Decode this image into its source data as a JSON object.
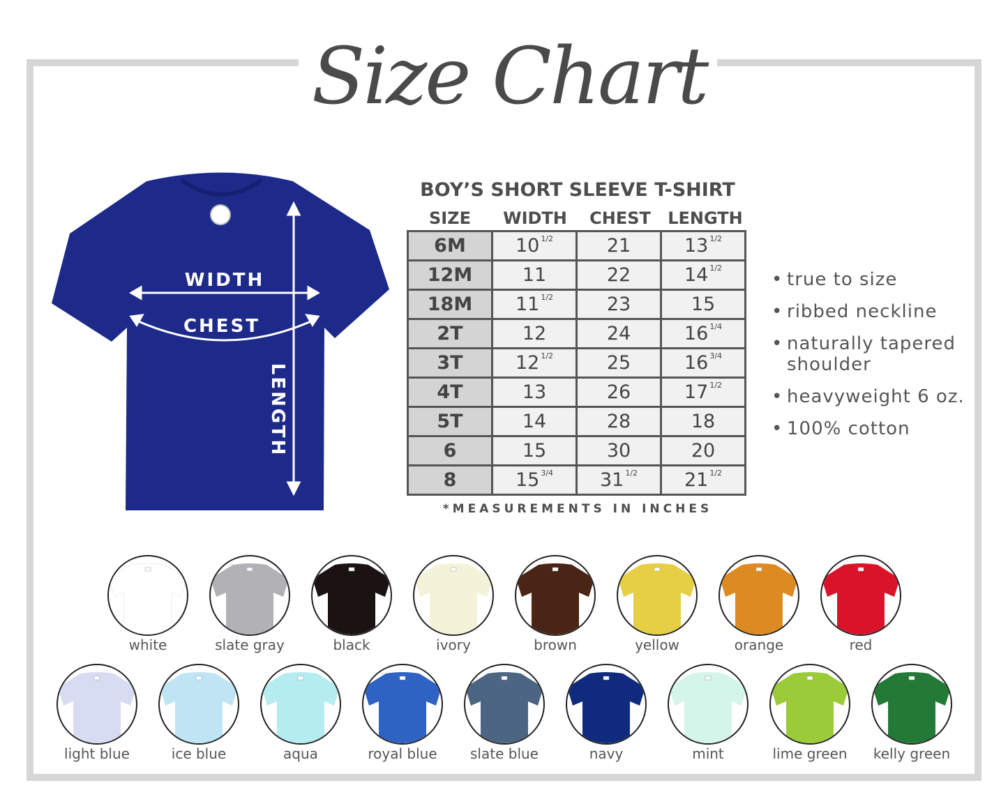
{
  "title": "Size Chart",
  "shirt": {
    "color": "#1d2a8a",
    "labels": {
      "width": "WIDTH",
      "chest": "CHEST",
      "length": "LENGTH"
    }
  },
  "table": {
    "title": "BOY’S SHORT SLEEVE T-SHIRT",
    "headers": [
      "SIZE",
      "WIDTH",
      "CHEST",
      "LENGTH"
    ],
    "rows": [
      {
        "size": "6M",
        "width": [
          "10",
          "1/2"
        ],
        "chest": [
          "21",
          ""
        ],
        "length": [
          "13",
          "1/2"
        ]
      },
      {
        "size": "12M",
        "width": [
          "11",
          ""
        ],
        "chest": [
          "22",
          ""
        ],
        "length": [
          "14",
          "1/2"
        ]
      },
      {
        "size": "18M",
        "width": [
          "11",
          "1/2"
        ],
        "chest": [
          "23",
          ""
        ],
        "length": [
          "15",
          ""
        ]
      },
      {
        "size": "2T",
        "width": [
          "12",
          ""
        ],
        "chest": [
          "24",
          ""
        ],
        "length": [
          "16",
          "1/4"
        ]
      },
      {
        "size": "3T",
        "width": [
          "12",
          "1/2"
        ],
        "chest": [
          "25",
          ""
        ],
        "length": [
          "16",
          "3/4"
        ]
      },
      {
        "size": "4T",
        "width": [
          "13",
          ""
        ],
        "chest": [
          "26",
          ""
        ],
        "length": [
          "17",
          "1/2"
        ]
      },
      {
        "size": "5T",
        "width": [
          "14",
          ""
        ],
        "chest": [
          "28",
          ""
        ],
        "length": [
          "18",
          ""
        ]
      },
      {
        "size": "6",
        "width": [
          "15",
          ""
        ],
        "chest": [
          "30",
          ""
        ],
        "length": [
          "20",
          ""
        ]
      },
      {
        "size": "8",
        "width": [
          "15",
          "3/4"
        ],
        "chest": [
          "31",
          "1/2"
        ],
        "length": [
          "21",
          "1/2"
        ]
      }
    ],
    "note": "*MEASUREMENTS IN INCHES"
  },
  "features": [
    "true to size",
    "ribbed neckline",
    "naturally tapered shoulder",
    "heavyweight 6 oz.",
    "100% cotton"
  ],
  "colors_row1": [
    {
      "name": "white",
      "hex": "#ffffff"
    },
    {
      "name": "slate gray",
      "hex": "#b2b2b6"
    },
    {
      "name": "black",
      "hex": "#1b1313"
    },
    {
      "name": "ivory",
      "hex": "#f5f2da"
    },
    {
      "name": "brown",
      "hex": "#4a2414"
    },
    {
      "name": "yellow",
      "hex": "#e6cf45"
    },
    {
      "name": "orange",
      "hex": "#dd8a22"
    },
    {
      "name": "red",
      "hex": "#d9142a"
    }
  ],
  "colors_row2": [
    {
      "name": "light blue",
      "hex": "#d8dcf2"
    },
    {
      "name": "ice blue",
      "hex": "#bfe5f4"
    },
    {
      "name": "aqua",
      "hex": "#b5ecf0"
    },
    {
      "name": "royal blue",
      "hex": "#2e63c4"
    },
    {
      "name": "slate blue",
      "hex": "#4c6582"
    },
    {
      "name": "navy",
      "hex": "#102a7e"
    },
    {
      "name": "mint",
      "hex": "#d4f5ea"
    },
    {
      "name": "lime green",
      "hex": "#9ccb3a"
    },
    {
      "name": "kelly green",
      "hex": "#237a36"
    }
  ]
}
